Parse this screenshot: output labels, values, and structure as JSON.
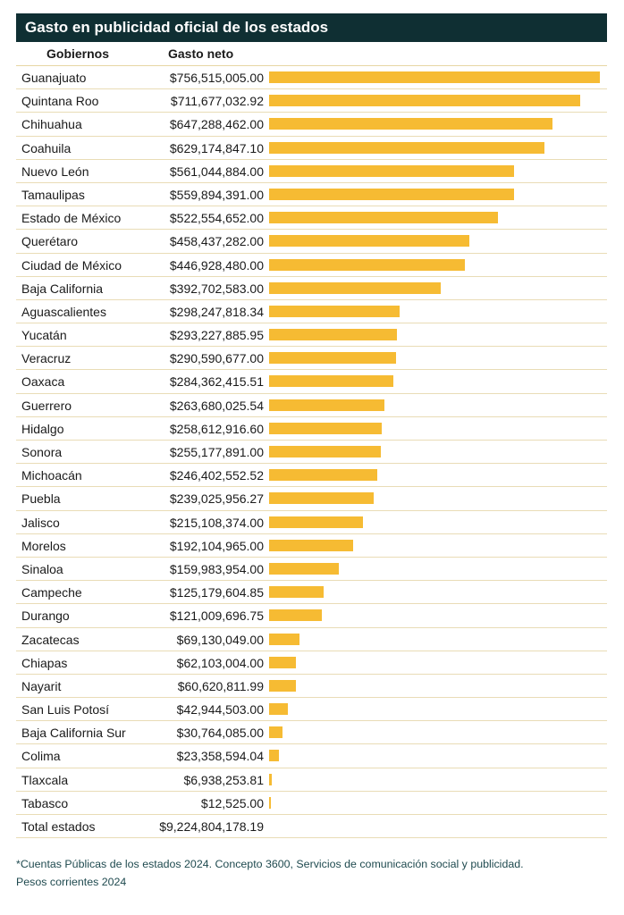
{
  "title": "Gasto en publicidad oficial de los estados",
  "headers": {
    "name": "Gobiernos",
    "value": "Gasto neto"
  },
  "chart_data": {
    "type": "bar",
    "orientation": "horizontal",
    "categories": [
      "Guanajuato",
      "Quintana Roo",
      "Chihuahua",
      "Coahuila",
      "Nuevo León",
      "Tamaulipas",
      "Estado de México",
      "Querétaro",
      "Ciudad de México",
      "Baja California",
      "Aguascalientes",
      "Yucatán",
      "Veracruz",
      "Oaxaca",
      "Guerrero",
      "Hidalgo",
      "Sonora",
      "Michoacán",
      "Puebla",
      "Jalisco",
      "Morelos",
      "Sinaloa",
      "Campeche",
      "Durango",
      "Zacatecas",
      "Chiapas",
      "Nayarit",
      "San Luis Potosí",
      "Baja California Sur",
      "Colima",
      "Tlaxcala",
      "Tabasco"
    ],
    "values": [
      756515005.0,
      711677032.92,
      647288462.0,
      629174847.1,
      561044884.0,
      559894391.0,
      522554652.0,
      458437282.0,
      446928480.0,
      392702583.0,
      298247818.34,
      293227885.95,
      290590677.0,
      284362415.51,
      263680025.54,
      258612916.6,
      255177891.0,
      246402552.52,
      239025956.27,
      215108374.0,
      192104965.0,
      159983954.0,
      125179604.85,
      121009696.75,
      69130049.0,
      62103004.0,
      60620811.99,
      42944503.0,
      30764085.0,
      23358594.04,
      6938253.81,
      12525.0
    ],
    "value_labels": [
      "$756,515,005.00",
      "$711,677,032.92",
      "$647,288,462.00",
      "$629,174,847.10",
      "$561,044,884.00",
      "$559,894,391.00",
      "$522,554,652.00",
      "$458,437,282.00",
      "$446,928,480.00",
      "$392,702,583.00",
      "$298,247,818.34",
      "$293,227,885.95",
      "$290,590,677.00",
      "$284,362,415.51",
      "$263,680,025.54",
      "$258,612,916.60",
      "$255,177,891.00",
      "$246,402,552.52",
      "$239,025,956.27",
      "$215,108,374.00",
      "$192,104,965.00",
      "$159,983,954.00",
      "$125,179,604.85",
      "$121,009,696.75",
      "$69,130,049.00",
      "$62,103,004.00",
      "$60,620,811.99",
      "$42,944,503.00",
      "$30,764,085.00",
      "$23,358,594.04",
      "$6,938,253.81",
      "$12,525.00"
    ],
    "total_label": "Total estados",
    "total_value": "$9,224,804,178.19",
    "bar_color": "#f6bb33",
    "header_color": "#0f2f33"
  },
  "footnote_line1": "*Cuentas Públicas de los estados 2024. Concepto 3600, Servicios de comunicación social y publicidad.",
  "footnote_line2": "Pesos corrientes 2024"
}
